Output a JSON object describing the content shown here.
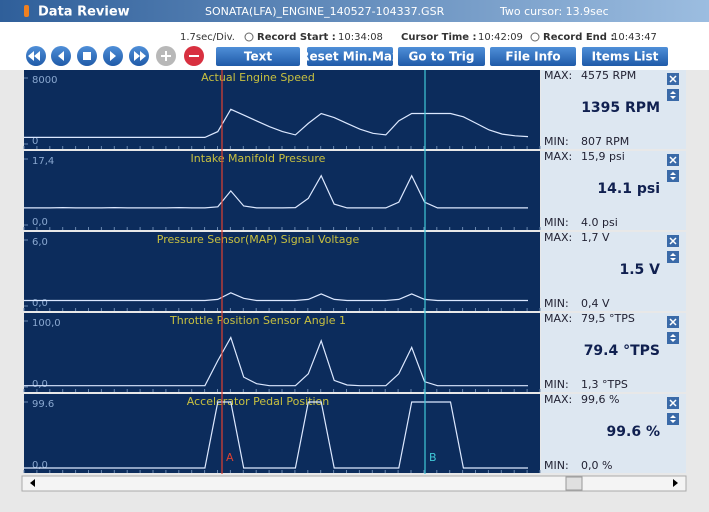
{
  "header": {
    "title": "Data Review",
    "file": "SONATA(LFA)_ENGINE_140527-104337.GSR",
    "cursor_span": "Two cursor: 13.9sec"
  },
  "info": {
    "scale": "1.7sec/Div.",
    "start_label": "Record Start :",
    "start": "10:34:08",
    "cursor_label": "Cursor Time :",
    "cursor": "10:42:09",
    "end_label": "Record End :",
    "end": "10:43:47"
  },
  "toolbar": {
    "buttons": [
      "Text",
      "Reset Min.Max",
      "Go to Trig",
      "File Info",
      "Items List"
    ]
  },
  "side_labels": {
    "max": "MAX:",
    "min": "MIN:"
  },
  "cursors": {
    "a": "A",
    "b": "B"
  },
  "chart_data": [
    {
      "type": "line",
      "title": "Actual Engine Speed",
      "ylim": [
        0,
        8000
      ],
      "yticks": [
        0,
        8000
      ],
      "color": "#dce8ff",
      "values": [
        800,
        800,
        800,
        800,
        800,
        800,
        800,
        800,
        800,
        800,
        800,
        800,
        800,
        800,
        800,
        1500,
        4200,
        3500,
        2800,
        2100,
        1500,
        1100,
        2500,
        3700,
        3200,
        2500,
        1800,
        1300,
        1100,
        2800,
        3700,
        3700,
        3700,
        3700,
        3300,
        2500,
        1700,
        1200,
        1000,
        900
      ],
      "max": "4575 RPM",
      "current": "1395 RPM",
      "min": "807 RPM"
    },
    {
      "type": "line",
      "title": "Intake Manifold Pressure",
      "ylim": [
        0,
        17.4
      ],
      "yticks": [
        {
          "value": 0,
          "label": "0,0"
        },
        {
          "value": 17.4,
          "label": "17,4"
        }
      ],
      "color": "#dce8ff",
      "values": [
        4.5,
        4.5,
        4.5,
        4.6,
        4.5,
        4.5,
        4.5,
        4.6,
        4.5,
        4.5,
        4.5,
        4.5,
        4.6,
        4.5,
        4.5,
        4.8,
        9,
        5,
        4.5,
        4.5,
        4.5,
        4.6,
        7,
        13,
        5.5,
        4.5,
        4.5,
        4.5,
        4.5,
        6,
        13,
        6,
        4.5,
        4.5,
        4.5,
        4.5,
        4.5,
        4.5,
        4.5,
        4.5
      ],
      "max": "15,9 psi",
      "current": "14.1 psi",
      "min": "4.0 psi"
    },
    {
      "type": "line",
      "title": "Pressure Sensor(MAP) Signal Voltage",
      "ylim": [
        0,
        6
      ],
      "yticks": [
        {
          "value": 0,
          "label": "0,0"
        },
        {
          "value": 6,
          "label": "6,0"
        }
      ],
      "color": "#dce8ff",
      "values": [
        0.5,
        0.5,
        0.5,
        0.5,
        0.5,
        0.5,
        0.5,
        0.5,
        0.5,
        0.5,
        0.5,
        0.5,
        0.5,
        0.5,
        0.5,
        0.6,
        1.2,
        0.7,
        0.5,
        0.5,
        0.5,
        0.5,
        0.6,
        1.1,
        0.6,
        0.5,
        0.5,
        0.5,
        0.5,
        0.6,
        1.1,
        0.6,
        0.5,
        0.5,
        0.5,
        0.5,
        0.5,
        0.5,
        0.5,
        0.5
      ],
      "max": "1,7 V",
      "current": "1.5 V",
      "min": "0,4 V"
    },
    {
      "type": "line",
      "title": "Throttle Position Sensor Angle 1",
      "ylim": [
        0,
        100
      ],
      "yticks": [
        {
          "value": 0,
          "label": "0,0"
        },
        {
          "value": 100,
          "label": "100,0"
        }
      ],
      "color": "#dce8ff",
      "values": [
        2,
        2,
        2,
        2,
        2,
        2,
        2,
        2,
        2,
        2,
        2,
        2,
        2,
        2,
        2,
        40,
        75,
        15,
        5,
        2,
        2,
        2,
        20,
        70,
        10,
        3,
        2,
        2,
        2,
        20,
        60,
        8,
        2,
        2,
        2,
        2,
        2,
        2,
        2,
        2
      ],
      "max": "79,5 °TPS",
      "current": "79.4 °TPS",
      "min": "1,3 °TPS"
    },
    {
      "type": "line",
      "title": "Accelerator Pedal Position",
      "ylim": [
        0,
        99.6
      ],
      "yticks": [
        {
          "value": 0,
          "label": "0,0"
        },
        99.6
      ],
      "color": "#dce8ff",
      "values": [
        0,
        0,
        0,
        0,
        0,
        0,
        0,
        0,
        0,
        0,
        0,
        0,
        0,
        0,
        0,
        99.6,
        99.6,
        0,
        0,
        0,
        0,
        0,
        99.6,
        99.6,
        0,
        0,
        0,
        0,
        0,
        0,
        99.6,
        99.6,
        99.6,
        99.6,
        0,
        0,
        0,
        0,
        0,
        0
      ],
      "max": "99,6 %",
      "current": "99.6 %",
      "min": "0,0 %"
    }
  ]
}
